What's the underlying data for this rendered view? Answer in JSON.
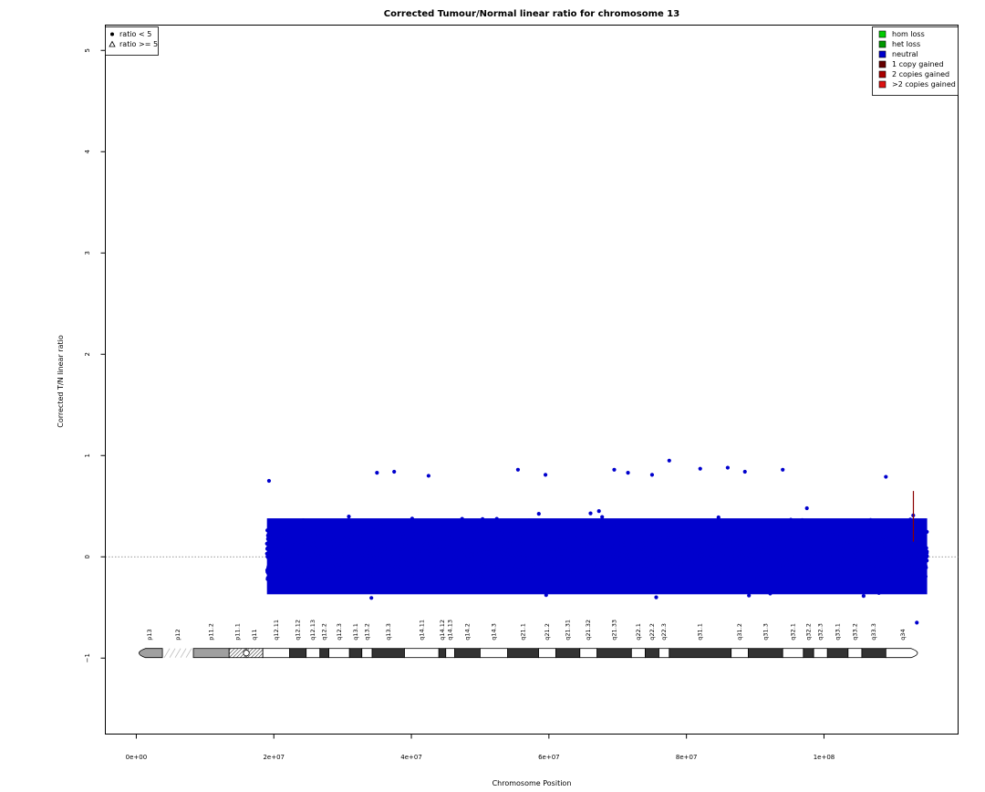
{
  "chart_data": {
    "type": "scatter",
    "title": "Corrected Tumour/Normal linear ratio for chromosome  13",
    "xlabel": "Chromosome Position",
    "ylabel": "Corrected T/N linear ratio",
    "xlim": [
      -4500000,
      119500000
    ],
    "ylim": [
      -1.75,
      5.25
    ],
    "x_ticks": [
      {
        "value": 0,
        "label": "0e+00"
      },
      {
        "value": 20000000,
        "label": "2e+07"
      },
      {
        "value": 40000000,
        "label": "4e+07"
      },
      {
        "value": 60000000,
        "label": "6e+07"
      },
      {
        "value": 80000000,
        "label": "8e+07"
      },
      {
        "value": 100000000,
        "label": "1e+08"
      }
    ],
    "y_ticks": [
      {
        "value": -1,
        "label": "−1"
      },
      {
        "value": 0,
        "label": "0"
      },
      {
        "value": 1,
        "label": "1"
      },
      {
        "value": 2,
        "label": "2"
      },
      {
        "value": 3,
        "label": "3"
      },
      {
        "value": 4,
        "label": "4"
      },
      {
        "value": 5,
        "label": "5"
      }
    ],
    "reference_line": {
      "y": 0,
      "style": "dotted"
    },
    "series": [
      {
        "name": "neutral",
        "color": "#0000CD",
        "marker": "filled circle",
        "x_range": [
          19000000,
          115000000
        ],
        "typical_range": [
          -0.45,
          0.5
        ],
        "notable_points": [
          {
            "x": 19300000,
            "y": 0.75
          },
          {
            "x": 35000000,
            "y": 0.83
          },
          {
            "x": 37500000,
            "y": 0.84
          },
          {
            "x": 42500000,
            "y": 0.8
          },
          {
            "x": 55500000,
            "y": 0.86
          },
          {
            "x": 59500000,
            "y": 0.81
          },
          {
            "x": 69500000,
            "y": 0.86
          },
          {
            "x": 71500000,
            "y": 0.83
          },
          {
            "x": 75000000,
            "y": 0.81
          },
          {
            "x": 77500000,
            "y": 0.95
          },
          {
            "x": 82000000,
            "y": 0.87
          },
          {
            "x": 86000000,
            "y": 0.88
          },
          {
            "x": 88500000,
            "y": 0.84
          },
          {
            "x": 94000000,
            "y": 0.86
          },
          {
            "x": 109000000,
            "y": 0.79
          },
          {
            "x": 113500000,
            "y": -0.65
          }
        ]
      },
      {
        "name": "1 copy gained",
        "color": "#8B0000",
        "marker": "vertical segment",
        "points": [
          {
            "x": 113000000,
            "y_from": 0.15,
            "y_to": 0.65
          }
        ]
      }
    ],
    "legend_markers": {
      "position": "top-left",
      "entries": [
        {
          "symbol": "circle",
          "label": "ratio < 5"
        },
        {
          "symbol": "triangle",
          "label": "ratio >= 5"
        }
      ]
    },
    "legend_states": {
      "position": "top-right",
      "entries": [
        {
          "label": "hom loss",
          "color": "#00CC00"
        },
        {
          "label": "het loss",
          "color": "#009900"
        },
        {
          "label": "neutral",
          "color": "#0000CD"
        },
        {
          "label": "1 copy gained",
          "color": "#660000"
        },
        {
          "label": "2 copies gained",
          "color": "#AA0000"
        },
        {
          "label": ">2 copies gained",
          "color": "#DD1111"
        }
      ]
    },
    "ideogram": {
      "y": -0.95,
      "bands": [
        {
          "name": "p13",
          "start": 0,
          "end": 3800000,
          "stain": "gray"
        },
        {
          "name": "p12",
          "start": 3800000,
          "end": 8300000,
          "stain": "stalk"
        },
        {
          "name": "p11.2",
          "start": 8300000,
          "end": 13500000,
          "stain": "gray"
        },
        {
          "name": "p11.1",
          "start": 13500000,
          "end": 16000000,
          "stain": "acen"
        },
        {
          "name": "q11",
          "start": 16000000,
          "end": 18400000,
          "stain": "acen"
        },
        {
          "name": "q12.11",
          "start": 18400000,
          "end": 22300000,
          "stain": "white"
        },
        {
          "name": "q12.12",
          "start": 22300000,
          "end": 24700000,
          "stain": "black"
        },
        {
          "name": "q12.13",
          "start": 24700000,
          "end": 26700000,
          "stain": "white"
        },
        {
          "name": "q12.2",
          "start": 26700000,
          "end": 28000000,
          "stain": "black"
        },
        {
          "name": "q12.3",
          "start": 28000000,
          "end": 31000000,
          "stain": "white"
        },
        {
          "name": "q13.1",
          "start": 31000000,
          "end": 32800000,
          "stain": "black"
        },
        {
          "name": "q13.2",
          "start": 32800000,
          "end": 34300000,
          "stain": "white"
        },
        {
          "name": "q13.3",
          "start": 34300000,
          "end": 39000000,
          "stain": "black"
        },
        {
          "name": "q14.11",
          "start": 39000000,
          "end": 44000000,
          "stain": "white"
        },
        {
          "name": "q14.12",
          "start": 44000000,
          "end": 45000000,
          "stain": "black"
        },
        {
          "name": "q14.13",
          "start": 45000000,
          "end": 46300000,
          "stain": "white"
        },
        {
          "name": "q14.2",
          "start": 46300000,
          "end": 50000000,
          "stain": "black"
        },
        {
          "name": "q14.3",
          "start": 50000000,
          "end": 54000000,
          "stain": "white"
        },
        {
          "name": "q21.1",
          "start": 54000000,
          "end": 58500000,
          "stain": "black"
        },
        {
          "name": "q21.2",
          "start": 58500000,
          "end": 61000000,
          "stain": "white"
        },
        {
          "name": "q21.31",
          "start": 61000000,
          "end": 64500000,
          "stain": "black"
        },
        {
          "name": "q21.32",
          "start": 64500000,
          "end": 67000000,
          "stain": "white"
        },
        {
          "name": "q21.33",
          "start": 67000000,
          "end": 72000000,
          "stain": "black"
        },
        {
          "name": "q22.1",
          "start": 72000000,
          "end": 74000000,
          "stain": "white"
        },
        {
          "name": "q22.2",
          "start": 74000000,
          "end": 76000000,
          "stain": "black"
        },
        {
          "name": "q22.3",
          "start": 76000000,
          "end": 77500000,
          "stain": "white"
        },
        {
          "name": "q31.1",
          "start": 77500000,
          "end": 86500000,
          "stain": "black"
        },
        {
          "name": "q31.2",
          "start": 86500000,
          "end": 89000000,
          "stain": "white"
        },
        {
          "name": "q31.3",
          "start": 89000000,
          "end": 94000000,
          "stain": "black"
        },
        {
          "name": "q32.1",
          "start": 94000000,
          "end": 97000000,
          "stain": "white"
        },
        {
          "name": "q32.2",
          "start": 97000000,
          "end": 98500000,
          "stain": "black"
        },
        {
          "name": "q32.3",
          "start": 98500000,
          "end": 100500000,
          "stain": "white"
        },
        {
          "name": "q33.1",
          "start": 100500000,
          "end": 103500000,
          "stain": "black"
        },
        {
          "name": "q33.2",
          "start": 103500000,
          "end": 105500000,
          "stain": "white"
        },
        {
          "name": "q33.3",
          "start": 105500000,
          "end": 109000000,
          "stain": "black"
        },
        {
          "name": "q34",
          "start": 109000000,
          "end": 114000000,
          "stain": "white"
        }
      ]
    }
  }
}
